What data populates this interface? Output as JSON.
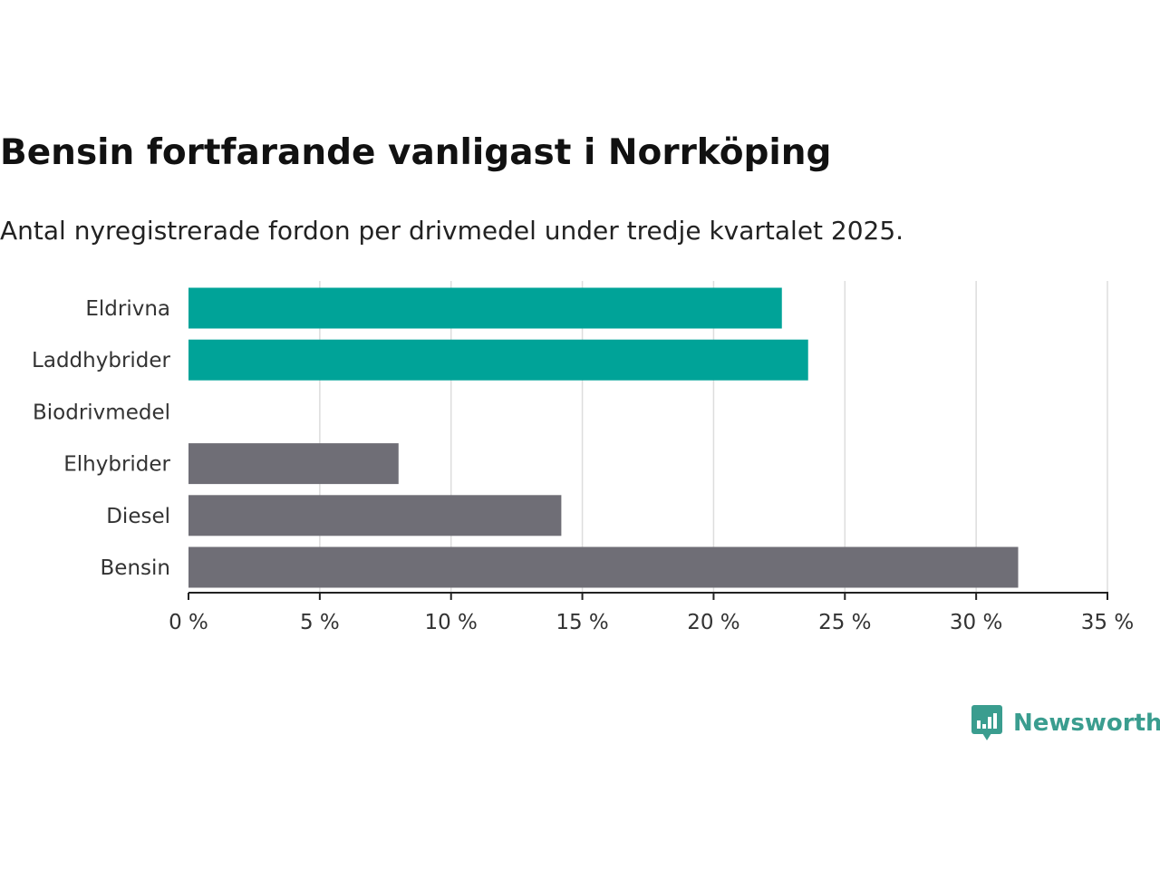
{
  "chart_data": {
    "type": "bar",
    "orientation": "horizontal",
    "title": "Bensin fortfarande vanligast i Norrköping",
    "subtitle": "Antal nyregistrerade fordon per drivmedel under tredje kvartalet 2025.",
    "categories": [
      "Eldrivna",
      "Laddhybrider",
      "Biodrivmedel",
      "Elhybrider",
      "Diesel",
      "Bensin"
    ],
    "values": [
      22.6,
      23.6,
      0,
      8.0,
      14.2,
      31.6
    ],
    "bar_colors": [
      "#00a398",
      "#00a398",
      "#00a398",
      "#6f6e76",
      "#6f6e76",
      "#6f6e76"
    ],
    "xlim": [
      0,
      35
    ],
    "xticks": [
      0,
      5,
      10,
      15,
      20,
      25,
      30,
      35
    ],
    "xtick_labels": [
      "0 %",
      "5 %",
      "10 %",
      "15 %",
      "20 %",
      "25 %",
      "30 %",
      "35 %"
    ],
    "xlabel": "",
    "ylabel": "",
    "grid": "vertical",
    "legend": "none"
  },
  "brand": {
    "name": "Newsworthy",
    "logo_icon": "newsworthy-logo-icon",
    "color": "#3a9d8f"
  }
}
